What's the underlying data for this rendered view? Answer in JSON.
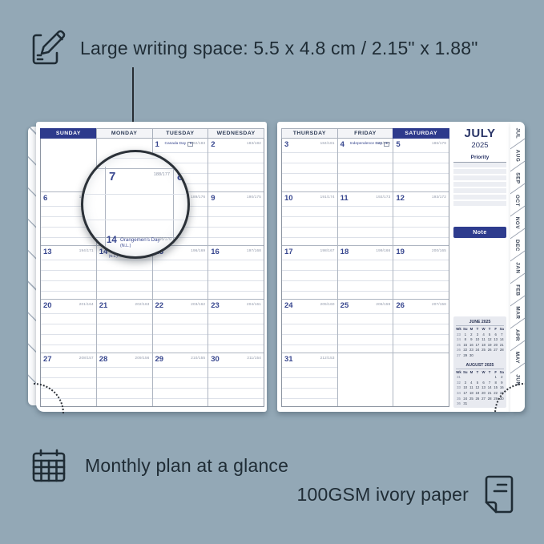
{
  "colors": {
    "background": "#93a8b6",
    "ink": "#1f2c35",
    "navy_header": "#2d3a8c",
    "date_navy": "#38478f",
    "note_bar": "#2e3c8e",
    "annotation_gray": "#8e96a8"
  },
  "top_feature": {
    "icon": "pencil-note-icon",
    "text": "Large writing space: 5.5 x 4.8 cm / 2.15\" x 1.88\""
  },
  "bottom_feature": {
    "icon": "calendar-grid-icon",
    "text": "Monthly plan at a glance"
  },
  "paper_feature": {
    "icon": "paper-sheet-icon",
    "text": "100GSM ivory paper"
  },
  "planner": {
    "left_page": {
      "headers": [
        {
          "label": "SUNDAY",
          "highlight": true
        },
        {
          "label": "MONDAY"
        },
        {
          "label": "TUESDAY"
        },
        {
          "label": "WEDNESDAY"
        }
      ],
      "rows": [
        [
          {
            "empty": true
          },
          {
            "empty": true
          },
          {
            "d": "1",
            "a": "182/183",
            "h": "Canada Day",
            "flag": true
          },
          {
            "d": "2",
            "a": "183/182"
          }
        ],
        [
          {
            "d": "6",
            "a": "187/178"
          },
          {
            "d": "7",
            "a": "188/177"
          },
          {
            "d": "8",
            "a": "189/176"
          },
          {
            "d": "9",
            "a": "190/175"
          }
        ],
        [
          {
            "d": "13",
            "a": "194/171"
          },
          {
            "d": "14",
            "a": "195/170",
            "h": "Orangemen's Day",
            "h2": "(N.L.)",
            "flag": true
          },
          {
            "d": "15",
            "a": "196/169"
          },
          {
            "d": "16",
            "a": "197/168"
          }
        ],
        [
          {
            "d": "20",
            "a": "201/164"
          },
          {
            "d": "21",
            "a": "202/163"
          },
          {
            "d": "22",
            "a": "203/162"
          },
          {
            "d": "23",
            "a": "204/161"
          }
        ],
        [
          {
            "d": "27",
            "a": "208/157"
          },
          {
            "d": "28",
            "a": "209/156"
          },
          {
            "d": "29",
            "a": "210/155"
          },
          {
            "d": "30",
            "a": "211/154"
          }
        ]
      ]
    },
    "right_page": {
      "headers": [
        {
          "label": "THURSDAY"
        },
        {
          "label": "FRIDAY"
        },
        {
          "label": "SATURDAY",
          "highlight": true
        }
      ],
      "rows": [
        [
          {
            "d": "3",
            "a": "184/181"
          },
          {
            "d": "4",
            "a": "185/180",
            "h": "Independence Day",
            "flag": true
          },
          {
            "d": "5",
            "a": "186/179"
          }
        ],
        [
          {
            "d": "10",
            "a": "191/174"
          },
          {
            "d": "11",
            "a": "192/173"
          },
          {
            "d": "12",
            "a": "193/172"
          }
        ],
        [
          {
            "d": "17",
            "a": "198/167"
          },
          {
            "d": "18",
            "a": "199/166"
          },
          {
            "d": "19",
            "a": "200/165"
          }
        ],
        [
          {
            "d": "24",
            "a": "205/160"
          },
          {
            "d": "25",
            "a": "206/159"
          },
          {
            "d": "26",
            "a": "207/158"
          }
        ],
        [
          {
            "d": "31",
            "a": "212/153"
          },
          {
            "empty": true
          },
          {
            "empty": true
          }
        ]
      ]
    },
    "sidebar": {
      "month": "JULY",
      "year": "2025",
      "priority_label": "Priority",
      "note_label": "Note",
      "mini_calendars": [
        {
          "title": "JUNE 2025",
          "header": [
            "Wk",
            "Su",
            "M",
            "T",
            "W",
            "T",
            "F",
            "Sa"
          ],
          "rows": [
            [
              "23",
              "1",
              "2",
              "3",
              "4",
              "5",
              "6",
              "7"
            ],
            [
              "24",
              "8",
              "9",
              "10",
              "11",
              "12",
              "13",
              "14"
            ],
            [
              "25",
              "15",
              "16",
              "17",
              "18",
              "19",
              "20",
              "21"
            ],
            [
              "26",
              "22",
              "23",
              "24",
              "25",
              "26",
              "27",
              "28"
            ],
            [
              "27",
              "29",
              "30",
              "",
              "",
              "",
              "",
              ""
            ]
          ]
        },
        {
          "title": "AUGUST 2025",
          "header": [
            "Wk",
            "Su",
            "M",
            "T",
            "W",
            "T",
            "F",
            "Sa"
          ],
          "rows": [
            [
              "31",
              "",
              "",
              "",
              "",
              "",
              "1",
              "2"
            ],
            [
              "32",
              "3",
              "4",
              "5",
              "6",
              "7",
              "8",
              "9"
            ],
            [
              "33",
              "10",
              "11",
              "12",
              "13",
              "14",
              "15",
              "16"
            ],
            [
              "34",
              "17",
              "18",
              "19",
              "20",
              "21",
              "22",
              "23"
            ],
            [
              "35",
              "24",
              "25",
              "26",
              "27",
              "28",
              "29",
              "30"
            ],
            [
              "36",
              "31",
              "",
              "",
              "",
              "",
              "",
              ""
            ]
          ]
        }
      ]
    },
    "tabs": [
      "JUL",
      "AUG",
      "SEP",
      "OCT",
      "NOV",
      "DEC",
      "JAN",
      "FEB",
      "MAR",
      "APR",
      "MAY",
      "JUN"
    ]
  },
  "magnifier": {
    "cell7": {
      "d": "7",
      "a": "188/177"
    },
    "cell8": {
      "d": "8"
    },
    "cell14": {
      "d": "14",
      "h": "Orangemen's Day",
      "h2": "(N.L.)",
      "a": "195/170"
    }
  }
}
